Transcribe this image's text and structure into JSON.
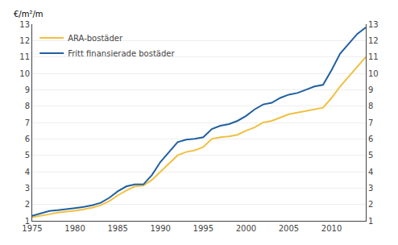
{
  "chart_data": {
    "type": "line",
    "ylabel": "€/m²/m",
    "x": [
      1975,
      1976,
      1977,
      1978,
      1979,
      1980,
      1981,
      1982,
      1983,
      1984,
      1985,
      1986,
      1987,
      1988,
      1989,
      1990,
      1991,
      1992,
      1993,
      1994,
      1995,
      1996,
      1997,
      1998,
      1999,
      2000,
      2001,
      2002,
      2003,
      2004,
      2005,
      2006,
      2007,
      2008,
      2009,
      2010,
      2011,
      2012,
      2013,
      2014
    ],
    "series": [
      {
        "name": "ARA-bostäder",
        "color": "#f0c040",
        "values": [
          1.22,
          1.3,
          1.4,
          1.5,
          1.55,
          1.62,
          1.7,
          1.8,
          1.95,
          2.2,
          2.55,
          2.85,
          3.1,
          3.15,
          3.5,
          4.0,
          4.5,
          5.0,
          5.2,
          5.3,
          5.5,
          6.0,
          6.1,
          6.15,
          6.25,
          6.5,
          6.7,
          7.0,
          7.1,
          7.3,
          7.5,
          7.6,
          7.7,
          7.8,
          7.9,
          8.5,
          9.2,
          9.8,
          10.4,
          11.0
        ]
      },
      {
        "name": "Fritt finansierade bostäder",
        "color": "#2060a0",
        "values": [
          1.3,
          1.45,
          1.6,
          1.65,
          1.7,
          1.78,
          1.85,
          1.95,
          2.1,
          2.4,
          2.8,
          3.1,
          3.22,
          3.22,
          3.8,
          4.6,
          5.2,
          5.8,
          5.95,
          6.0,
          6.1,
          6.6,
          6.8,
          6.9,
          7.1,
          7.4,
          7.8,
          8.1,
          8.2,
          8.5,
          8.7,
          8.8,
          9.0,
          9.2,
          9.3,
          10.2,
          11.2,
          11.8,
          12.4,
          12.8
        ]
      }
    ],
    "xlim": [
      1975,
      2014
    ],
    "xticks": [
      1975,
      1980,
      1985,
      1990,
      1995,
      2000,
      2005,
      2010
    ],
    "ylim": [
      1,
      13
    ],
    "yticks": [
      1,
      2,
      3,
      4,
      5,
      6,
      7,
      8,
      9,
      10,
      11,
      12,
      13
    ],
    "y2lim": [
      1,
      13
    ],
    "y2ticks": [
      1,
      2,
      3,
      4,
      5,
      6,
      7,
      8,
      9,
      10,
      11,
      12,
      13
    ],
    "grid": true,
    "legend": "upper left"
  }
}
